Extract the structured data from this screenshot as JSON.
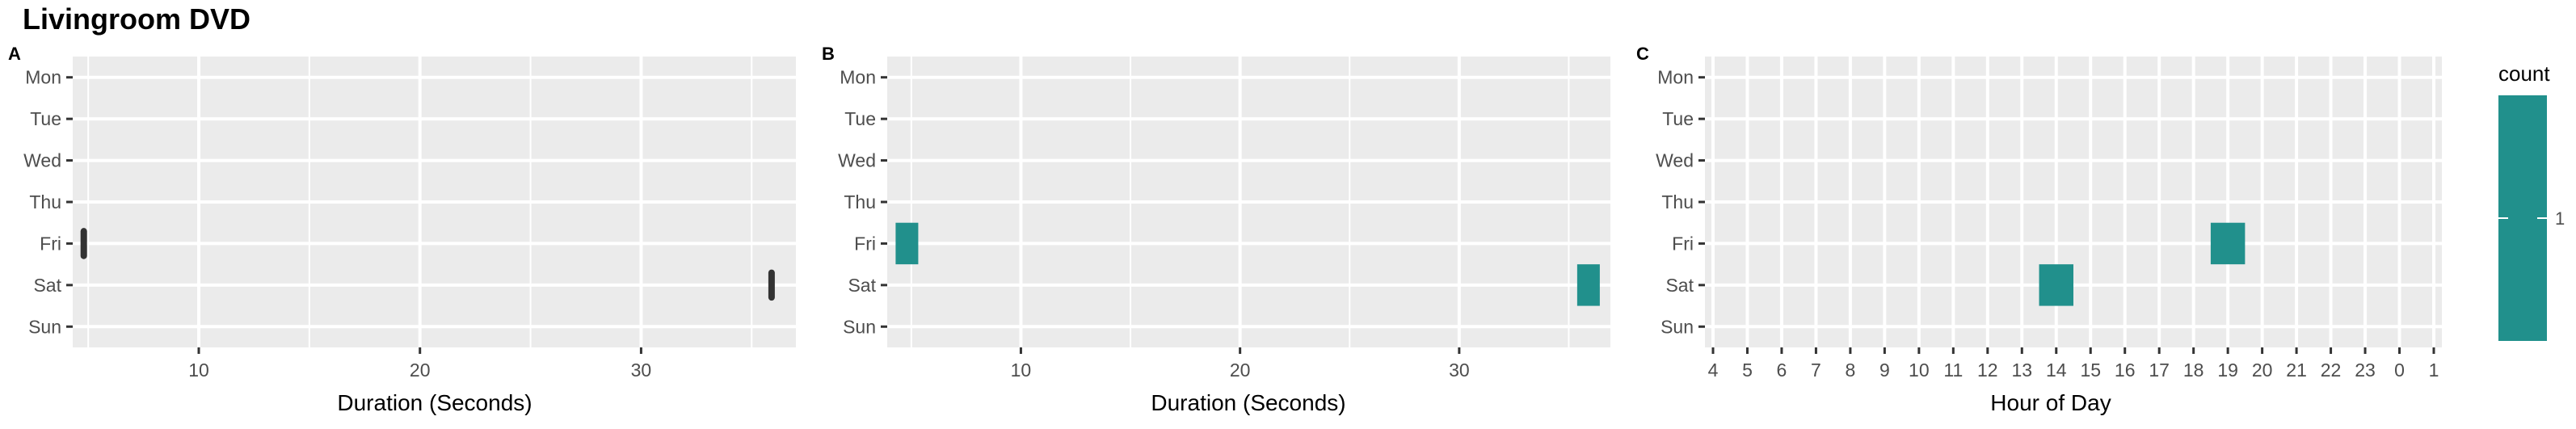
{
  "title": "Livingroom DVD",
  "colors": {
    "panel_bg": "#ebebeb",
    "grid": "#ffffff",
    "fill": "#21908c",
    "box_line": "#333333",
    "axis_text": "#4d4d4d"
  },
  "chart_data": [
    {
      "panel": "A",
      "type": "boxplot",
      "xlabel": "Duration (Seconds)",
      "ylabel": "",
      "days": [
        "Mon",
        "Tue",
        "Wed",
        "Thu",
        "Fri",
        "Sat",
        "Sun"
      ],
      "x_ticks": [
        "10",
        "20",
        "30"
      ],
      "xlim": [
        4.3,
        37
      ],
      "grid": true,
      "boxes": [
        {
          "day": "Fri",
          "min": 4.8,
          "q1": 4.8,
          "median": 4.8,
          "q3": 4.8,
          "max": 4.8
        },
        {
          "day": "Sat",
          "min": 35.9,
          "q1": 35.9,
          "median": 35.9,
          "q3": 35.9,
          "max": 35.9
        }
      ]
    },
    {
      "panel": "B",
      "type": "heatmap",
      "xlabel": "Duration (Seconds)",
      "ylabel": "",
      "days": [
        "Mon",
        "Tue",
        "Wed",
        "Thu",
        "Fri",
        "Sat",
        "Sun"
      ],
      "x_ticks": [
        "10",
        "20",
        "30"
      ],
      "xlim": [
        3.9,
        36.9
      ],
      "grid": true,
      "tiles": [
        {
          "day": "Fri",
          "x": 4.8,
          "count": 1
        },
        {
          "day": "Sat",
          "x": 35.9,
          "count": 1
        }
      ]
    },
    {
      "panel": "C",
      "type": "heatmap",
      "xlabel": "Hour of Day",
      "ylabel": "",
      "days": [
        "Mon",
        "Tue",
        "Wed",
        "Thu",
        "Fri",
        "Sat",
        "Sun"
      ],
      "hours": [
        "4",
        "5",
        "6",
        "7",
        "8",
        "9",
        "10",
        "11",
        "12",
        "13",
        "14",
        "15",
        "16",
        "17",
        "18",
        "19",
        "20",
        "21",
        "22",
        "23",
        "0",
        "1"
      ],
      "grid": true,
      "tiles": [
        {
          "day": "Fri",
          "hour": "19",
          "count": 1
        },
        {
          "day": "Sat",
          "hour": "14",
          "count": 1
        }
      ]
    }
  ],
  "legend": {
    "title": "count",
    "ticks": [
      "1"
    ],
    "placement": "right"
  }
}
